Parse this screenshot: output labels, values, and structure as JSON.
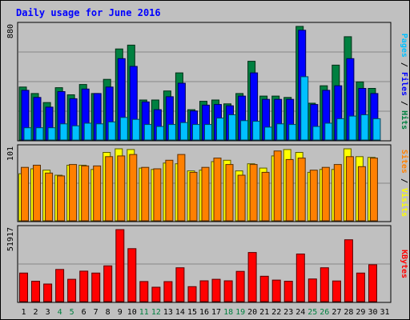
{
  "chart_data": {
    "type": "bar",
    "title": "Daily usage for June 2016",
    "categories": [
      "1",
      "2",
      "3",
      "4",
      "5",
      "6",
      "7",
      "8",
      "9",
      "10",
      "11",
      "12",
      "13",
      "14",
      "15",
      "16",
      "17",
      "18",
      "19",
      "20",
      "21",
      "22",
      "23",
      "24",
      "25",
      "26",
      "27",
      "28",
      "29",
      "30",
      "31"
    ],
    "weekend_days": [
      "4",
      "5",
      "11",
      "12",
      "18",
      "19",
      "25",
      "26"
    ],
    "panels": [
      {
        "id": "pages-files-hits",
        "max_label": "880",
        "ylim": [
          0,
          880
        ],
        "series": [
          {
            "name": "Hits",
            "color": "#008040",
            "values": [
              410,
              360,
              290,
              405,
              350,
              430,
              360,
              470,
              705,
              735,
              310,
              310,
              380,
              520,
              235,
              300,
              310,
              280,
              360,
              610,
              340,
              340,
              330,
              880,
              285,
              420,
              580,
              800,
              450,
              400,
              null
            ]
          },
          {
            "name": "Files",
            "color": "#0000ff",
            "values": [
              385,
              330,
              255,
              375,
              320,
              395,
              360,
              410,
              630,
              570,
              295,
              235,
              335,
              440,
              225,
              270,
              275,
              265,
              340,
              520,
              315,
              315,
              315,
              850,
              275,
              385,
              420,
              630,
              400,
              360,
              null
            ]
          },
          {
            "name": "Pages",
            "color": "#00c0ff",
            "values": [
              95,
              95,
              95,
              125,
              110,
              130,
              125,
              140,
              175,
              160,
              120,
              105,
              120,
              135,
              120,
              120,
              170,
              195,
              150,
              145,
              100,
              125,
              120,
              490,
              105,
              130,
              165,
              185,
              195,
              165,
              null
            ]
          }
        ],
        "axis_label_parts": [
          {
            "text": "Pages",
            "color": "#00c0ff"
          },
          {
            "text": " / ",
            "color": "#000000"
          },
          {
            "text": "Files",
            "color": "#0000ff"
          },
          {
            "text": " / ",
            "color": "#000000"
          },
          {
            "text": "Hits",
            "color": "#008040"
          }
        ]
      },
      {
        "id": "sites-visits",
        "max_label": "101",
        "ylim": [
          0,
          101
        ],
        "series": [
          {
            "name": "Visits",
            "color": "#ffff00",
            "values": [
              66,
              73,
              71,
              64,
              78,
              78,
              72,
              96,
              101,
              100,
              74,
              72,
              81,
              80,
              70,
              71,
              83,
              85,
              70,
              80,
              74,
              91,
              100,
              96,
              68,
              72,
              72,
              101,
              90,
              89,
              null
            ]
          },
          {
            "name": "Sites",
            "color": "#ff8000",
            "values": [
              75,
              78,
              67,
              63,
              79,
              77,
              77,
              90,
              91,
              93,
              75,
              73,
              85,
              93,
              68,
              75,
              88,
              79,
              64,
              79,
              68,
              98,
              86,
              88,
              71,
              75,
              79,
              90,
              76,
              88,
              null
            ]
          }
        ],
        "axis_label_parts": [
          {
            "text": "Sites",
            "color": "#ff8000"
          },
          {
            "text": " / ",
            "color": "#000000"
          },
          {
            "text": "Visits",
            "color": "#ffff00"
          }
        ]
      },
      {
        "id": "kbytes",
        "max_label": "51917",
        "ylim": [
          0,
          51917
        ],
        "series": [
          {
            "name": "KBytes",
            "color": "#ff0000",
            "values": [
              20600,
              14700,
              12700,
              23200,
              16100,
              22000,
              20600,
              25800,
              51917,
              38200,
              14500,
              10400,
              14400,
              24400,
              10800,
              15000,
              16100,
              15000,
              21800,
              35400,
              18300,
              15500,
              14700,
              34300,
              16300,
              24400,
              14900,
              44600,
              20600,
              26600,
              null
            ]
          }
        ],
        "axis_label_parts": [
          {
            "text": "KBytes",
            "color": "#ff0000"
          }
        ]
      }
    ]
  }
}
